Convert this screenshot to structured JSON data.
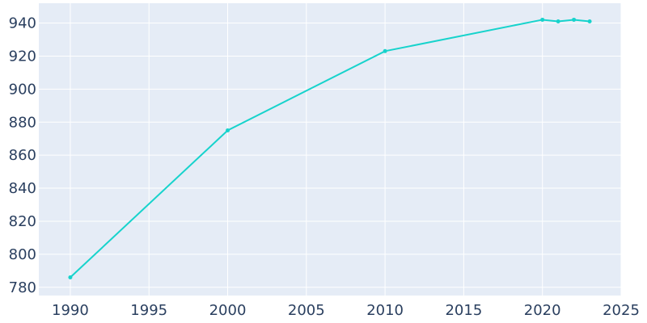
{
  "chart_data": {
    "type": "line",
    "title": "",
    "xlabel": "",
    "ylabel": "",
    "x": [
      1990,
      2000,
      2010,
      2020,
      2021,
      2022,
      2023
    ],
    "series": [
      {
        "values": [
          786,
          875,
          923,
          942,
          941,
          942,
          941
        ]
      }
    ],
    "xlim": [
      1988,
      2025
    ],
    "ylim": [
      775,
      952
    ],
    "xticks": [
      1990,
      1995,
      2000,
      2005,
      2010,
      2015,
      2020,
      2025
    ],
    "yticks": [
      780,
      800,
      820,
      840,
      860,
      880,
      900,
      920,
      940
    ],
    "grid": true,
    "colors": {
      "line": "#17d3cc",
      "plot_bg": "#e5ecf6",
      "grid": "#ffffff",
      "text": "#2a3f5f"
    }
  }
}
